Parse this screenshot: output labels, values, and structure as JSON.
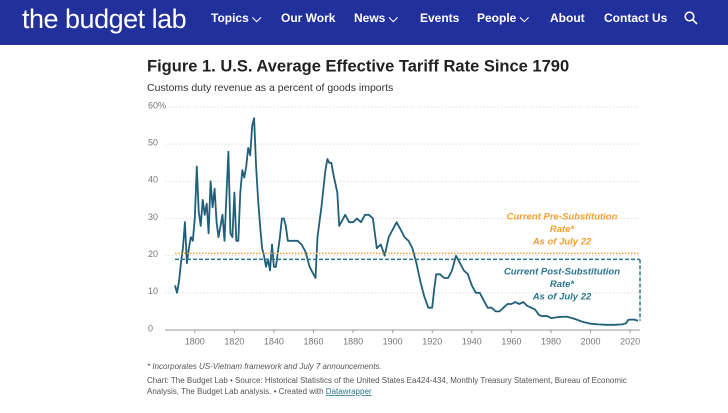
{
  "header": {
    "logo": "the budget lab",
    "nav": [
      "Topics",
      "Our Work",
      "News",
      "Events",
      "People",
      "About",
      "Contact Us"
    ]
  },
  "chart_data": {
    "type": "line",
    "title": "Figure 1. U.S. Average Effective Tariff Rate Since 1790",
    "subtitle": "Customs duty revenue as a percent of goods imports",
    "x": [
      1790,
      1791,
      1792,
      1793,
      1794,
      1795,
      1796,
      1797,
      1798,
      1799,
      1800,
      1801,
      1802,
      1803,
      1804,
      1805,
      1806,
      1807,
      1808,
      1809,
      1810,
      1811,
      1812,
      1813,
      1814,
      1815,
      1816,
      1817,
      1818,
      1819,
      1820,
      1821,
      1822,
      1823,
      1824,
      1825,
      1826,
      1827,
      1828,
      1829,
      1830,
      1831,
      1832,
      1833,
      1834,
      1835,
      1836,
      1837,
      1838,
      1839,
      1840,
      1841,
      1842,
      1843,
      1844,
      1845,
      1846,
      1847,
      1848,
      1849,
      1850,
      1852,
      1854,
      1856,
      1857,
      1858,
      1860,
      1861,
      1862,
      1863,
      1864,
      1865,
      1866,
      1867,
      1868,
      1869,
      1870,
      1872,
      1873,
      1874,
      1876,
      1878,
      1880,
      1882,
      1884,
      1886,
      1888,
      1890,
      1892,
      1894,
      1896,
      1898,
      1900,
      1902,
      1904,
      1906,
      1908,
      1910,
      1912,
      1914,
      1916,
      1918,
      1920,
      1921,
      1922,
      1924,
      1926,
      1928,
      1930,
      1932,
      1934,
      1936,
      1938,
      1940,
      1942,
      1944,
      1946,
      1948,
      1950,
      1952,
      1954,
      1956,
      1958,
      1960,
      1962,
      1964,
      1966,
      1968,
      1970,
      1972,
      1974,
      1976,
      1978,
      1980,
      1984,
      1988,
      1992,
      1996,
      2000,
      2004,
      2008,
      2012,
      2016,
      2018,
      2019,
      2020,
      2022,
      2024
    ],
    "values": [
      12,
      10,
      13,
      18,
      22,
      29,
      18,
      22,
      25,
      24,
      30,
      44,
      32,
      28,
      35,
      31,
      34,
      26,
      40,
      33,
      38,
      29,
      25,
      28,
      31,
      24,
      36,
      48,
      26,
      25,
      37,
      24,
      24,
      37,
      43,
      41,
      44,
      49,
      47,
      55,
      57,
      44,
      35,
      28,
      22,
      20,
      17,
      19,
      16,
      23,
      17,
      17,
      21,
      25,
      30,
      30,
      28,
      24,
      24,
      24,
      24,
      24,
      23,
      21,
      19,
      17,
      15,
      14,
      25,
      29,
      33,
      38,
      43,
      46,
      45,
      45,
      42,
      37,
      28,
      29,
      31,
      29,
      29,
      30,
      29,
      31,
      31,
      30,
      22,
      23,
      20,
      25,
      27,
      29,
      27,
      25,
      24,
      22,
      18,
      13,
      9,
      6,
      6,
      11,
      15,
      15,
      14,
      14,
      16,
      20,
      18,
      16,
      15,
      12,
      10,
      10,
      8,
      6,
      6,
      5,
      5,
      6,
      7,
      7,
      7.5,
      7,
      7.5,
      6.5,
      6,
      5.5,
      4,
      3.7,
      3.8,
      3.2,
      3.5,
      3.6,
      3,
      2.2,
      1.7,
      1.5,
      1.4,
      1.4,
      1.5,
      1.8,
      2.7,
      2.8,
      2.8,
      2.5
    ],
    "color": "#1f5f7a",
    "xlim": [
      1790,
      2025
    ],
    "ylim": [
      0,
      60
    ],
    "xticks": [
      1800,
      1820,
      1840,
      1860,
      1880,
      1900,
      1920,
      1940,
      1960,
      1980,
      2000,
      2020
    ],
    "yticks": [
      0,
      10,
      20,
      30,
      40,
      50,
      {
        "value": 60,
        "label": "60%"
      }
    ],
    "grid": true,
    "reference_lines": [
      {
        "value": 20.6,
        "color": "#f0a030",
        "label": [
          "Current Pre-Substitution",
          "Rate*",
          "As of July 22"
        ]
      },
      {
        "value": 19,
        "color": "#2a7590",
        "label": [
          "Current Post-Substitution",
          "Rate*",
          "As of July 22"
        ]
      }
    ],
    "notes": [
      "* Incorporates US-Vietnam framework and July 7 announcements."
    ],
    "source": [
      "Chart: The Budget Lab • Source: Historical Statistics of the United States Ea424-434, Monthly Treasury Statement, Bureau of Economic",
      "Analysis, The Budget Lab analysis. • Created with "
    ],
    "source_link": "Datawrapper"
  }
}
